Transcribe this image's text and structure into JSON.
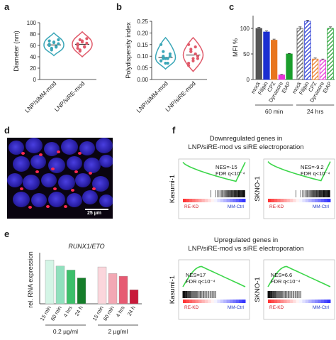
{
  "panels": {
    "a": {
      "letter": "a"
    },
    "b": {
      "letter": "b"
    },
    "c": {
      "letter": "c"
    },
    "d": {
      "letter": "d",
      "scalebar_label": "25 µm"
    },
    "e": {
      "letter": "e"
    },
    "f": {
      "letter": "f"
    }
  },
  "colors": {
    "teal": "#3ba7b8",
    "red": "#e05a6a",
    "dark_gray": "#555555",
    "blue": "#1c2fd1",
    "orange": "#e8761e",
    "magenta": "#e834d8",
    "green": "#1b9e2c",
    "gsea_curve": "#3cd64a"
  },
  "chart_data": [
    {
      "id": "a",
      "type": "scatter",
      "ylabel": "Diameter (nm)",
      "ylim": [
        0,
        100
      ],
      "yticks": [
        "0",
        "20",
        "40",
        "60",
        "80",
        "100"
      ],
      "categories": [
        "LNP/siMM-mod",
        "LNP/siRE-mod"
      ],
      "series": [
        {
          "values": [
            62,
            55,
            65,
            58,
            70,
            60,
            52,
            66,
            57,
            63,
            68,
            54
          ],
          "mean": 61
        },
        {
          "values": [
            60,
            52,
            68,
            57,
            72,
            63,
            50,
            66,
            58,
            64,
            55,
            70
          ],
          "mean": 62
        }
      ]
    },
    {
      "id": "b",
      "type": "scatter",
      "ylabel": "Polydispersity index",
      "ylim": [
        0,
        0.25
      ],
      "yticks": [
        "0.00",
        "0.05",
        "0.10",
        "0.15",
        "0.20",
        "0.25"
      ],
      "categories": [
        "LNP/siMM-mod",
        "LNP/siRE-mod"
      ],
      "series": [
        {
          "values": [
            0.08,
            0.1,
            0.07,
            0.09,
            0.11,
            0.08,
            0.12,
            0.09,
            0.07,
            0.1,
            0.15,
            0.09
          ],
          "mean": 0.095
        },
        {
          "values": [
            0.07,
            0.12,
            0.09,
            0.14,
            0.1,
            0.06,
            0.13,
            0.08,
            0.11,
            0.09,
            0.15,
            0.12
          ],
          "mean": 0.105
        }
      ]
    },
    {
      "id": "c",
      "type": "bar",
      "ylabel": "MFI %",
      "ylim": [
        0,
        125
      ],
      "yticks": [
        "0",
        "50",
        "100"
      ],
      "categories": [
        "mock",
        "Filipin",
        "CPZ",
        "Dynasore",
        "EIAP"
      ],
      "groups": [
        {
          "label": "60 min",
          "values": [
            100,
            93,
            77,
            9,
            50
          ],
          "errors": [
            2,
            2,
            2,
            1,
            1
          ]
        },
        {
          "label": "24 hrs",
          "values": [
            100,
            114,
            40,
            38,
            100
          ],
          "errors": [
            3,
            2,
            2,
            2,
            3
          ]
        }
      ]
    },
    {
      "id": "e",
      "type": "bar",
      "title": "RUNX1/ETO",
      "ylabel": "rel. RNA expression",
      "ylim": [
        0,
        1.1
      ],
      "categories": [
        "15 min",
        "60 min",
        "4 hrs",
        "24 h"
      ],
      "groups": [
        {
          "label": "0.2 µg/ml",
          "values": [
            1.0,
            0.86,
            0.77,
            0.59
          ]
        },
        {
          "label": "2 µg/ml",
          "values": [
            0.84,
            0.69,
            0.63,
            0.32
          ]
        }
      ]
    }
  ],
  "gsea": {
    "down_title_1": "Downregulated genes in",
    "down_title_2": "LNP/siRE-mod vs siRE electroporation",
    "up_title_1": "Upregulated genes in",
    "up_title_2": "LNP/siRE-mod vs siRE electroporation",
    "plots": [
      {
        "cell_line": "Kasumi-1",
        "nes": "NES=-15",
        "fdr": "FDR q<10⁻⁴",
        "left": "RE-KD",
        "right": "MM-Ctrl"
      },
      {
        "cell_line": "SKNO-1",
        "nes": "NES=-9.2",
        "fdr": "FDR q<10⁻⁴",
        "left": "RE-KD",
        "right": "MM-Ctrl"
      },
      {
        "cell_line": "Kasumi-1",
        "nes": "NES=17",
        "fdr": "FDR q<10⁻⁴",
        "left": "RE-KD",
        "right": "MM-Ctrl"
      },
      {
        "cell_line": "SKNO-1",
        "nes": "NES=6.6",
        "fdr": "FDR q<10⁻⁴",
        "left": "RE-KD",
        "right": "MM-Ctrl"
      }
    ]
  }
}
